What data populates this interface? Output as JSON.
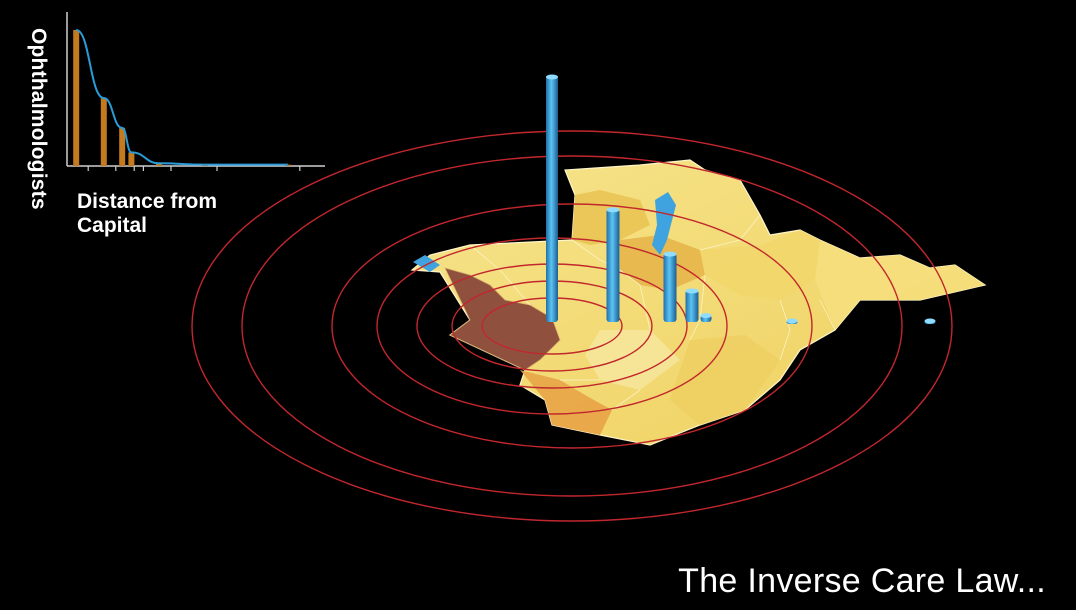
{
  "slide": {
    "title": "The Inverse Care Law..."
  },
  "colors": {
    "background": "#000000",
    "bar_inset": "#c47a1e",
    "curve": "#2a9bd8",
    "bar_3d": "#3aa7e6",
    "rings": "#c1272d",
    "map_light": "#f3e07a",
    "map_mid": "#e8b24a",
    "map_dark": "#8a4a3a"
  },
  "chart_data": [
    {
      "type": "bar",
      "name": "inset-chart",
      "ylabel": "Ophthalmologists",
      "xlabel": "Distance from Capital",
      "x": [
        1,
        4,
        6,
        7,
        10,
        15,
        24
      ],
      "values": [
        100,
        50,
        28,
        10,
        2,
        1,
        1
      ],
      "curve": true,
      "ylim": [
        0,
        100
      ],
      "grid": false
    },
    {
      "type": "bar",
      "name": "map-3d-bars",
      "values": [
        100,
        46,
        28,
        13,
        3,
        1,
        1
      ],
      "rings": 7
    }
  ]
}
